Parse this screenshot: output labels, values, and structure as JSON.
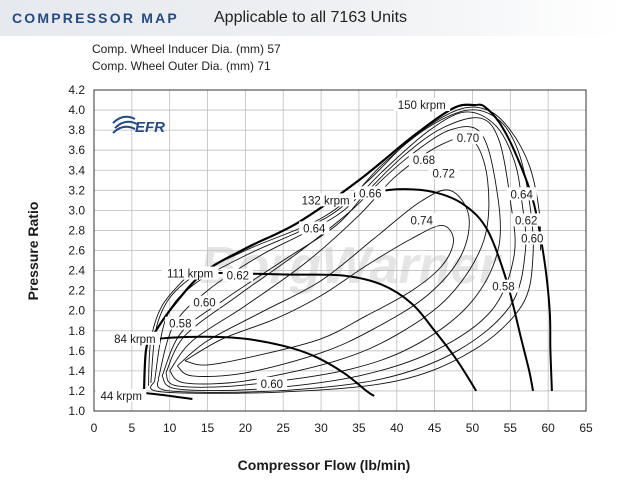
{
  "header": {
    "title": "COMPRESSOR MAP",
    "subtitle": "Applicable to all 7163 Units"
  },
  "specs": {
    "inducer": "Comp. Wheel Inducer Dia. (mm) 57",
    "outer": "Comp. Wheel Outer Dia. (mm) 71"
  },
  "logo": {
    "text": "EFR",
    "watermark": "BorgWarner",
    "colors": {
      "logo": "#244b86",
      "watermark": "#dcdcdc"
    }
  },
  "chart_data": {
    "type": "line",
    "title": "",
    "xlabel": "Compressor Flow (lb/min)",
    "ylabel": "Pressure Ratio",
    "xlim": [
      0,
      65
    ],
    "ylim": [
      1.0,
      4.2
    ],
    "xticks": [
      0,
      5,
      10,
      15,
      20,
      25,
      30,
      35,
      40,
      45,
      50,
      55,
      60,
      65
    ],
    "yticks": [
      1.0,
      1.2,
      1.4,
      1.6,
      1.8,
      2.0,
      2.2,
      2.4,
      2.6,
      2.8,
      3.0,
      3.2,
      3.4,
      3.6,
      3.8,
      4.0,
      4.2
    ],
    "grid": true,
    "surge_line": [
      [
        6.6,
        1.18
      ],
      [
        6.9,
        1.62
      ],
      [
        8.0,
        1.78
      ],
      [
        10.5,
        2.05
      ],
      [
        14.5,
        2.38
      ],
      [
        20,
        2.62
      ],
      [
        27,
        2.88
      ],
      [
        35,
        3.3
      ],
      [
        42,
        3.73
      ],
      [
        47.5,
        4.02
      ],
      [
        50.5,
        4.05
      ]
    ],
    "speed_lines": [
      {
        "name": "44 krpm",
        "points": [
          [
            6.6,
            1.18
          ],
          [
            9,
            1.16
          ],
          [
            11,
            1.14
          ],
          [
            13,
            1.12
          ]
        ]
      },
      {
        "name": "84 krpm",
        "points": [
          [
            6.9,
            1.7
          ],
          [
            10,
            1.73
          ],
          [
            15,
            1.74
          ],
          [
            20,
            1.72
          ],
          [
            25,
            1.65
          ],
          [
            29,
            1.55
          ],
          [
            33,
            1.38
          ],
          [
            36,
            1.2
          ],
          [
            37,
            1.15
          ]
        ]
      },
      {
        "name": "111 krpm",
        "points": [
          [
            14.5,
            2.38
          ],
          [
            20,
            2.37
          ],
          [
            26,
            2.36
          ],
          [
            33,
            2.35
          ],
          [
            38,
            2.26
          ],
          [
            42,
            2.07
          ],
          [
            45,
            1.8
          ],
          [
            48,
            1.5
          ],
          [
            50.5,
            1.2
          ]
        ]
      },
      {
        "name": "132 krpm",
        "points": [
          [
            31,
            3.08
          ],
          [
            35,
            3.15
          ],
          [
            40,
            3.21
          ],
          [
            45,
            3.18
          ],
          [
            49,
            3.05
          ],
          [
            52,
            2.8
          ],
          [
            54.5,
            2.3
          ],
          [
            56.5,
            1.7
          ],
          [
            57.5,
            1.4
          ],
          [
            58,
            1.2
          ]
        ]
      },
      {
        "name": "150 krpm",
        "points": [
          [
            50.5,
            4.05
          ],
          [
            51.5,
            4.04
          ],
          [
            53.5,
            3.88
          ],
          [
            55.5,
            3.6
          ],
          [
            58,
            3.1
          ],
          [
            59.5,
            2.5
          ],
          [
            60.2,
            2.0
          ],
          [
            60.3,
            1.6
          ],
          [
            60.5,
            1.2
          ]
        ]
      }
    ],
    "efficiency_islands": [
      {
        "label": "0.74",
        "points": [
          [
            12,
            1.5
          ],
          [
            17,
            1.72
          ],
          [
            24,
            1.92
          ],
          [
            30,
            2.15
          ],
          [
            36,
            2.45
          ],
          [
            42,
            2.72
          ],
          [
            46,
            2.85
          ],
          [
            47.5,
            2.7
          ],
          [
            46,
            2.45
          ],
          [
            42,
            2.2
          ],
          [
            36,
            1.95
          ],
          [
            30,
            1.72
          ],
          [
            22,
            1.56
          ],
          [
            15,
            1.46
          ],
          [
            12,
            1.5
          ]
        ]
      },
      {
        "label": "0.72",
        "points": [
          [
            11,
            1.45
          ],
          [
            15,
            1.7
          ],
          [
            22,
            1.98
          ],
          [
            30,
            2.3
          ],
          [
            37,
            2.72
          ],
          [
            43,
            3.08
          ],
          [
            47,
            3.2
          ],
          [
            49.5,
            2.95
          ],
          [
            48.5,
            2.55
          ],
          [
            44,
            2.15
          ],
          [
            37,
            1.82
          ],
          [
            30,
            1.58
          ],
          [
            20,
            1.38
          ],
          [
            13,
            1.35
          ],
          [
            11,
            1.45
          ]
        ]
      },
      {
        "label": "0.70",
        "points": [
          [
            10,
            1.4
          ],
          [
            13,
            1.7
          ],
          [
            20,
            2.05
          ],
          [
            28,
            2.48
          ],
          [
            35,
            2.95
          ],
          [
            40,
            3.35
          ],
          [
            46,
            3.66
          ],
          [
            50,
            3.7
          ],
          [
            52,
            3.3
          ],
          [
            51.5,
            2.7
          ],
          [
            47,
            2.15
          ],
          [
            40,
            1.76
          ],
          [
            32,
            1.5
          ],
          [
            20,
            1.3
          ],
          [
            12,
            1.28
          ],
          [
            10,
            1.4
          ]
        ]
      },
      {
        "label": "0.68",
        "points": [
          [
            9.5,
            1.38
          ],
          [
            12,
            1.75
          ],
          [
            19,
            2.15
          ],
          [
            27,
            2.58
          ],
          [
            34,
            3.0
          ],
          [
            38,
            3.3
          ],
          [
            42,
            3.56
          ],
          [
            47,
            3.8
          ],
          [
            51,
            3.78
          ],
          [
            53,
            3.3
          ],
          [
            53.5,
            2.65
          ],
          [
            50,
            2.1
          ],
          [
            43,
            1.68
          ],
          [
            34,
            1.42
          ],
          [
            20,
            1.26
          ],
          [
            11,
            1.25
          ],
          [
            9.5,
            1.38
          ]
        ]
      },
      {
        "label": "0.66",
        "points": [
          [
            9,
            1.35
          ],
          [
            11.5,
            1.78
          ],
          [
            17,
            2.1
          ],
          [
            25,
            2.5
          ],
          [
            32,
            2.85
          ],
          [
            36,
            3.18
          ],
          [
            41,
            3.55
          ],
          [
            46,
            3.82
          ],
          [
            51,
            3.92
          ],
          [
            53.5,
            3.7
          ],
          [
            55,
            3.1
          ],
          [
            55.5,
            2.55
          ],
          [
            52.5,
            2.0
          ],
          [
            45,
            1.6
          ],
          [
            35,
            1.35
          ],
          [
            22,
            1.22
          ],
          [
            11,
            1.22
          ],
          [
            9,
            1.35
          ]
        ]
      },
      {
        "label": "0.64",
        "points": [
          [
            8.5,
            1.32
          ],
          [
            10.5,
            1.85
          ],
          [
            15,
            2.2
          ],
          [
            22,
            2.55
          ],
          [
            28,
            2.78
          ],
          [
            33,
            3.0
          ],
          [
            38,
            3.38
          ],
          [
            44,
            3.78
          ],
          [
            49,
            3.98
          ],
          [
            53,
            3.85
          ],
          [
            55.5,
            3.5
          ],
          [
            56.5,
            3.1
          ],
          [
            57,
            2.6
          ],
          [
            55,
            2.05
          ],
          [
            48,
            1.6
          ],
          [
            38,
            1.32
          ],
          [
            24,
            1.2
          ],
          [
            10,
            1.2
          ],
          [
            8.5,
            1.32
          ]
        ]
      },
      {
        "label": "0.62",
        "points": [
          [
            8,
            1.3
          ],
          [
            9.5,
            1.92
          ],
          [
            13,
            2.25
          ],
          [
            20,
            2.55
          ],
          [
            28,
            2.82
          ],
          [
            33,
            3.05
          ],
          [
            38,
            3.45
          ],
          [
            44,
            3.82
          ],
          [
            49.5,
            4.0
          ],
          [
            53.5,
            3.9
          ],
          [
            56,
            3.6
          ],
          [
            57.5,
            3.1
          ],
          [
            58,
            2.55
          ],
          [
            56.5,
            2.05
          ],
          [
            50,
            1.6
          ],
          [
            40,
            1.3
          ],
          [
            25,
            1.19
          ],
          [
            9,
            1.19
          ],
          [
            8,
            1.3
          ]
        ]
      },
      {
        "label": "0.60",
        "points": [
          [
            7.5,
            1.28
          ],
          [
            8.5,
            1.9
          ],
          [
            12,
            2.28
          ],
          [
            20,
            2.6
          ],
          [
            30,
            2.92
          ],
          [
            36,
            3.28
          ],
          [
            42,
            3.72
          ],
          [
            48,
            4.0
          ],
          [
            52,
            4.0
          ],
          [
            55,
            3.8
          ],
          [
            57.5,
            3.45
          ],
          [
            58.8,
            3.0
          ],
          [
            59,
            2.6
          ]
        ]
      },
      {
        "label": "0.58",
        "points": [
          [
            7.2,
            1.25
          ],
          [
            7.5,
            1.7
          ],
          [
            9,
            2.05
          ],
          [
            12,
            2.32
          ]
        ]
      }
    ],
    "curve_labels": [
      {
        "text": "150 krpm",
        "x": 43.3,
        "y": 4.05
      },
      {
        "text": "132 krpm",
        "x": 30.6,
        "y": 3.1
      },
      {
        "text": "111 krpm",
        "x": 12.7,
        "y": 2.37
      },
      {
        "text": "84 krpm",
        "x": 5.4,
        "y": 1.72
      },
      {
        "text": "44 krpm",
        "x": 3.6,
        "y": 1.15
      },
      {
        "text": "0.70",
        "x": 49.4,
        "y": 3.72
      },
      {
        "text": "0.68",
        "x": 43.6,
        "y": 3.5
      },
      {
        "text": "0.72",
        "x": 46.2,
        "y": 3.37
      },
      {
        "text": "0.66",
        "x": 36.5,
        "y": 3.17
      },
      {
        "text": "0.74",
        "x": 43.3,
        "y": 2.9
      },
      {
        "text": "0.64",
        "x": 29.1,
        "y": 2.82
      },
      {
        "text": "0.62",
        "x": 19.0,
        "y": 2.35
      },
      {
        "text": "0.60",
        "x": 14.6,
        "y": 2.08
      },
      {
        "text": "0.58",
        "x": 11.4,
        "y": 1.87
      },
      {
        "text": "0.60",
        "x": 23.5,
        "y": 1.27
      },
      {
        "text": "0.64",
        "x": 56.5,
        "y": 3.16
      },
      {
        "text": "0.62",
        "x": 57.1,
        "y": 2.9
      },
      {
        "text": "0.60",
        "x": 57.9,
        "y": 2.72
      },
      {
        "text": "0.58",
        "x": 54.1,
        "y": 2.24
      }
    ]
  }
}
